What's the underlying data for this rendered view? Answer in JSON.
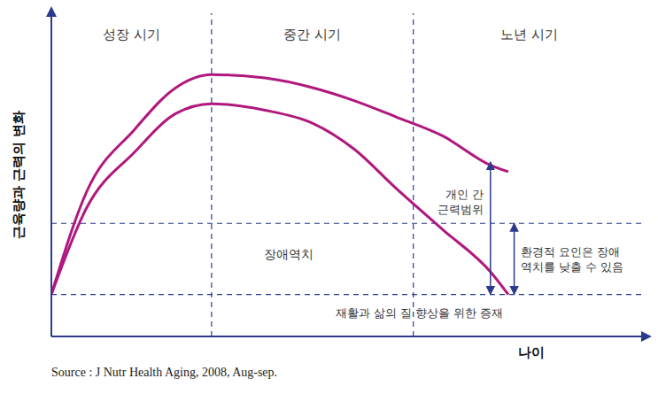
{
  "chart_data": {
    "type": "line",
    "y_label": "근육량과 근력의 변화",
    "x_label": "나이",
    "source": "Source : J Nutr Health Aging, 2008, Aug-sep.",
    "phases": [
      "성장 시기",
      "중간 시기",
      "노년 시기"
    ],
    "x": [
      0,
      6,
      14,
      21,
      27,
      36,
      44,
      51,
      58,
      66,
      74,
      77
    ],
    "series": [
      {
        "color": "#b0187e",
        "values": [
          13,
          45,
          64,
          77,
          81,
          80,
          77,
          73,
          68,
          62,
          53,
          51
        ]
      },
      {
        "color": "#b0187e",
        "values": [
          13,
          40,
          57,
          69,
          72,
          70,
          66,
          58,
          46,
          33,
          20,
          13
        ]
      }
    ],
    "xlim": [
      0,
      100
    ],
    "ylim": [
      0,
      100
    ],
    "tick_labels": false,
    "grid": false,
    "reference_lines": {
      "x": [
        27,
        61
      ],
      "y": [
        35,
        13
      ],
      "color": "#2b3a8c",
      "line_style": "dashed"
    },
    "ranges": [
      {
        "label": "개인 간 근력범위",
        "x": 74,
        "from": 13,
        "to": 54
      },
      {
        "label": "환경적 요인은 장애 역치를 낮출 수 있음",
        "x": 78,
        "from": 13,
        "to": 35
      }
    ],
    "annotations": [
      "장애역치",
      "재활과 삶의 질 향상을 위한 증재"
    ]
  }
}
